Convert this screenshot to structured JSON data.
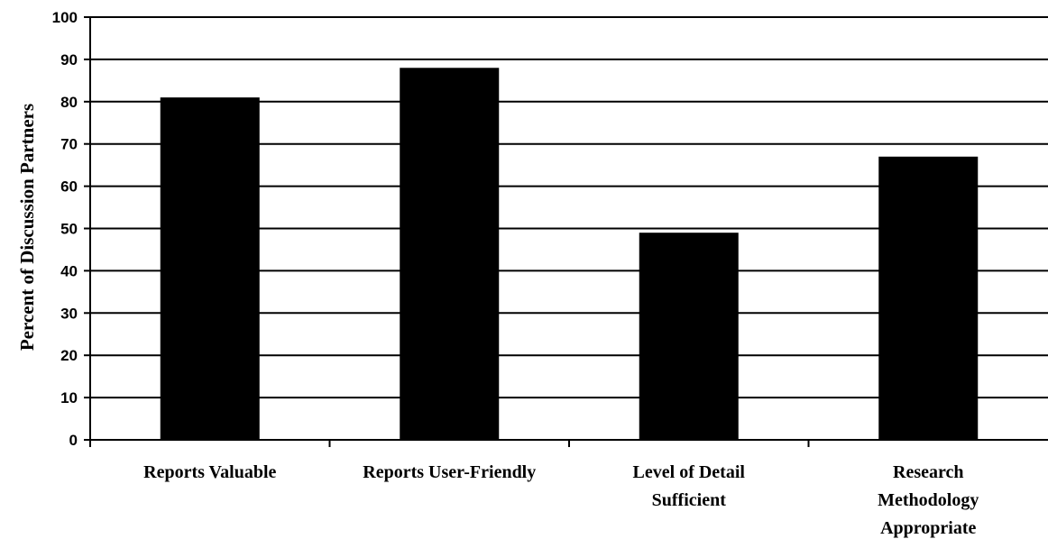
{
  "chart_data": {
    "type": "bar",
    "title": "",
    "xlabel": "",
    "ylabel": "Percent of Discussion Partners",
    "ylim": [
      0,
      100
    ],
    "yticks": [
      0,
      10,
      20,
      30,
      40,
      50,
      60,
      70,
      80,
      90,
      100
    ],
    "grid": true,
    "categories": [
      [
        "Reports Valuable"
      ],
      [
        "Reports User-Friendly"
      ],
      [
        "Level of Detail",
        "Sufficient"
      ],
      [
        "Research",
        "Methodology",
        "Appropriate"
      ]
    ],
    "values": [
      81,
      88,
      49,
      67
    ],
    "colors": {
      "bar": "#000000",
      "grid": "#000000",
      "axis": "#000000"
    }
  }
}
